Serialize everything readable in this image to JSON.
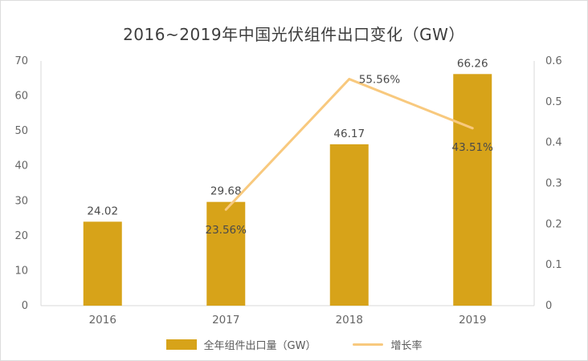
{
  "title": "2016~2019年中国光伏组件出口变化（GW）",
  "legend": {
    "bar_label": "全年组件出口量（GW）",
    "line_label": "增长率"
  },
  "colors": {
    "bar": "#d7a319",
    "line": "#f8c97e",
    "title_text": "#3d3d3d",
    "axis_text": "#666666",
    "axis_line": "#d9d9d9",
    "label_text": "#4a4a4a"
  },
  "chart_data": {
    "type": "bar",
    "subtype": "bar+line combo",
    "title": "2016~2019年中国光伏组件出口变化（GW）",
    "categories": [
      "2016",
      "2017",
      "2018",
      "2019"
    ],
    "series": [
      {
        "name": "全年组件出口量（GW）",
        "type": "bar",
        "axis": "left",
        "values": [
          24.02,
          29.68,
          46.17,
          66.26
        ],
        "labels": [
          "24.02",
          "29.68",
          "46.17",
          "66.26"
        ]
      },
      {
        "name": "增长率",
        "type": "line",
        "axis": "right",
        "values": [
          null,
          0.2356,
          0.5556,
          0.4351
        ],
        "labels": [
          null,
          "23.56%",
          "55.56%",
          "43.51%"
        ]
      }
    ],
    "left_axis": {
      "min": 0,
      "max": 70,
      "ticks": [
        0,
        10,
        20,
        30,
        40,
        50,
        60,
        70
      ]
    },
    "right_axis": {
      "min": 0,
      "max": 0.6,
      "ticks": [
        "0",
        "0.1",
        "0.2",
        "0.3",
        "0.4",
        "0.5",
        "0.6"
      ]
    },
    "grid": false,
    "legend_position": "bottom",
    "xlabel": "",
    "ylabel": ""
  }
}
